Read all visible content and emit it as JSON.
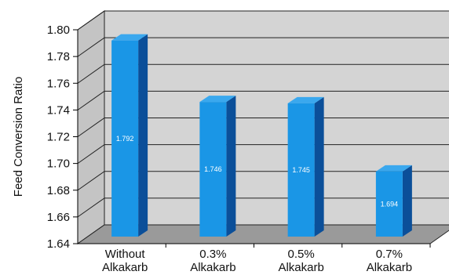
{
  "chart_data": {
    "type": "bar",
    "categories": [
      [
        "Without",
        "Alkakarb"
      ],
      [
        "0.3%",
        "Alkakarb"
      ],
      [
        "0.5%",
        "Alkakarb"
      ],
      [
        "0.7%",
        "Alkakarb"
      ]
    ],
    "values": [
      1.792,
      1.746,
      1.745,
      1.694
    ],
    "data_labels": [
      "1.792",
      "1.746",
      "1.745",
      "1.694"
    ],
    "ylabel": "Feed Conversion Ratio",
    "xlabel": "",
    "ylim": [
      1.64,
      1.8
    ],
    "yticks": [
      "1.64",
      "1.66",
      "1.68",
      "1.70",
      "1.72",
      "1.74",
      "1.76",
      "1.78",
      "1.80"
    ],
    "grid": true,
    "three_d": true,
    "colors": {
      "bar_front": "#1a96e6",
      "bar_side": "#0b4f99",
      "bar_top": "#3aa8ee",
      "wall": "#d4d4d4",
      "floor": "#9a9a9a",
      "gridline": "#222222"
    }
  }
}
